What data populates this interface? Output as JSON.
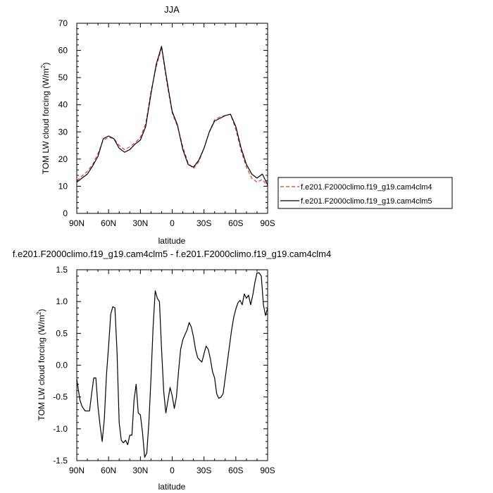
{
  "chart_data": [
    {
      "type": "line",
      "title": "JJA",
      "xlabel": "latitude",
      "ylabel": "TOM LW cloud forcing (W/m",
      "ylabel_sup": "2",
      "ylabel_close": ")",
      "xlim": [
        90,
        -90
      ],
      "ylim": [
        0,
        70
      ],
      "x_ticks": [
        90,
        60,
        30,
        0,
        -30,
        -60,
        -90
      ],
      "x_tick_labels": [
        "90N",
        "60N",
        "30N",
        "0",
        "30S",
        "60S",
        "90S"
      ],
      "y_ticks": [
        0,
        10,
        20,
        30,
        40,
        50,
        60,
        70
      ],
      "y_tick_labels": [
        "0",
        "10",
        "20",
        "30",
        "40",
        "50",
        "60",
        "70"
      ],
      "legend_position": "right",
      "series": [
        {
          "name": "f.e201.F2000climo.f19_g19.cam4clm4",
          "color": "#e8352e",
          "dash": true,
          "x": [
            90,
            85,
            80,
            75,
            70,
            65,
            60,
            55,
            50,
            45,
            40,
            35,
            30,
            25,
            20,
            15,
            10,
            5,
            0,
            -5,
            -10,
            -15,
            -20,
            -25,
            -30,
            -35,
            -40,
            -45,
            -50,
            -55,
            -60,
            -65,
            -70,
            -75,
            -80,
            -85,
            -90
          ],
          "y": [
            12.0,
            13.8,
            15.5,
            18.0,
            22.0,
            27.0,
            28.0,
            27.5,
            25.0,
            23.5,
            24.5,
            26.0,
            28.0,
            33.0,
            45.0,
            54.0,
            61.0,
            48.0,
            37.0,
            32.0,
            24.5,
            18.5,
            16.5,
            19.0,
            24.0,
            30.0,
            34.5,
            35.5,
            36.0,
            36.5,
            31.0,
            23.0,
            17.0,
            13.0,
            11.5,
            12.5,
            10.0
          ]
        },
        {
          "name": "f.e201.F2000climo.f19_g19.cam4clm5",
          "color": "#000000",
          "dash": false,
          "x": [
            90,
            85,
            80,
            75,
            70,
            65,
            60,
            55,
            50,
            45,
            40,
            35,
            30,
            25,
            20,
            15,
            10,
            5,
            0,
            -5,
            -10,
            -15,
            -20,
            -25,
            -30,
            -35,
            -40,
            -45,
            -50,
            -55,
            -60,
            -65,
            -70,
            -75,
            -80,
            -85,
            -90
          ],
          "y": [
            11.5,
            13.0,
            14.5,
            17.5,
            21.0,
            27.5,
            28.5,
            27.5,
            24.0,
            22.5,
            23.5,
            25.5,
            27.0,
            32.0,
            44.0,
            55.0,
            61.5,
            49.0,
            37.5,
            32.5,
            23.5,
            18.0,
            17.0,
            19.5,
            24.0,
            30.0,
            34.0,
            35.0,
            36.0,
            36.5,
            32.0,
            24.0,
            18.0,
            14.5,
            13.0,
            14.5,
            10.5
          ]
        }
      ]
    },
    {
      "type": "line",
      "title": "f.e201.F2000climo.f19_g19.cam4clm5 - f.e201.F2000climo.f19_g19.cam4clm4",
      "xlabel": "latitude",
      "ylabel": "TOM LW cloud forcing (W/m",
      "ylabel_sup": "2",
      "ylabel_close": ")",
      "xlim": [
        90,
        -90
      ],
      "ylim": [
        -1.5,
        1.5
      ],
      "x_ticks": [
        90,
        60,
        30,
        0,
        -30,
        -60,
        -90
      ],
      "x_tick_labels": [
        "90N",
        "60N",
        "30N",
        "0",
        "30S",
        "60S",
        "90S"
      ],
      "y_ticks": [
        -1.5,
        -1.0,
        -0.5,
        0.0,
        0.5,
        1.0,
        1.5
      ],
      "y_tick_labels": [
        "-1.5",
        "-1.0",
        "-0.5",
        "0.0",
        "0.5",
        "1.0",
        "1.5"
      ],
      "series": [
        {
          "color": "#000000",
          "x": [
            90,
            87,
            85,
            82,
            78,
            76,
            74,
            72,
            70,
            68,
            66,
            64,
            62,
            60,
            58,
            56,
            54,
            52,
            50,
            48,
            46,
            44,
            42,
            40,
            38,
            36,
            34,
            32,
            30,
            28,
            26,
            24,
            22,
            20,
            18,
            16,
            14,
            12,
            10,
            8,
            6,
            4,
            2,
            0,
            -2,
            -4,
            -6,
            -8,
            -10,
            -12,
            -14,
            -16,
            -18,
            -20,
            -22,
            -24,
            -26,
            -28,
            -30,
            -32,
            -34,
            -36,
            -38,
            -40,
            -42,
            -44,
            -46,
            -48,
            -50,
            -52,
            -54,
            -56,
            -58,
            -60,
            -62,
            -64,
            -66,
            -68,
            -70,
            -72,
            -74,
            -76,
            -78,
            -80,
            -82,
            -84,
            -86,
            -88,
            -90
          ],
          "y": [
            -0.22,
            -0.55,
            -0.65,
            -0.72,
            -0.72,
            -0.45,
            -0.2,
            -0.2,
            -0.65,
            -0.95,
            -1.2,
            -0.85,
            -0.15,
            0.3,
            0.8,
            0.92,
            0.9,
            0.2,
            -0.9,
            -1.18,
            -1.22,
            -1.18,
            -1.25,
            -1.1,
            -1.1,
            -0.55,
            -0.3,
            -0.75,
            -0.78,
            -1.05,
            -1.45,
            -1.38,
            -0.9,
            -0.2,
            0.6,
            1.17,
            1.05,
            1.0,
            0.25,
            -0.42,
            -0.75,
            -0.55,
            -0.35,
            -0.48,
            -0.68,
            -0.5,
            -0.1,
            0.25,
            0.4,
            0.48,
            0.55,
            0.67,
            0.6,
            0.45,
            0.25,
            0.12,
            0.08,
            0.05,
            0.18,
            0.3,
            0.25,
            0.1,
            -0.1,
            -0.2,
            -0.45,
            -0.52,
            -0.5,
            -0.45,
            -0.2,
            0.05,
            0.3,
            0.55,
            0.75,
            0.88,
            0.98,
            1.02,
            0.95,
            1.12,
            1.05,
            1.1,
            0.95,
            1.1,
            1.3,
            1.45,
            1.45,
            1.4,
            0.95,
            0.78,
            0.9
          ]
        }
      ]
    }
  ]
}
